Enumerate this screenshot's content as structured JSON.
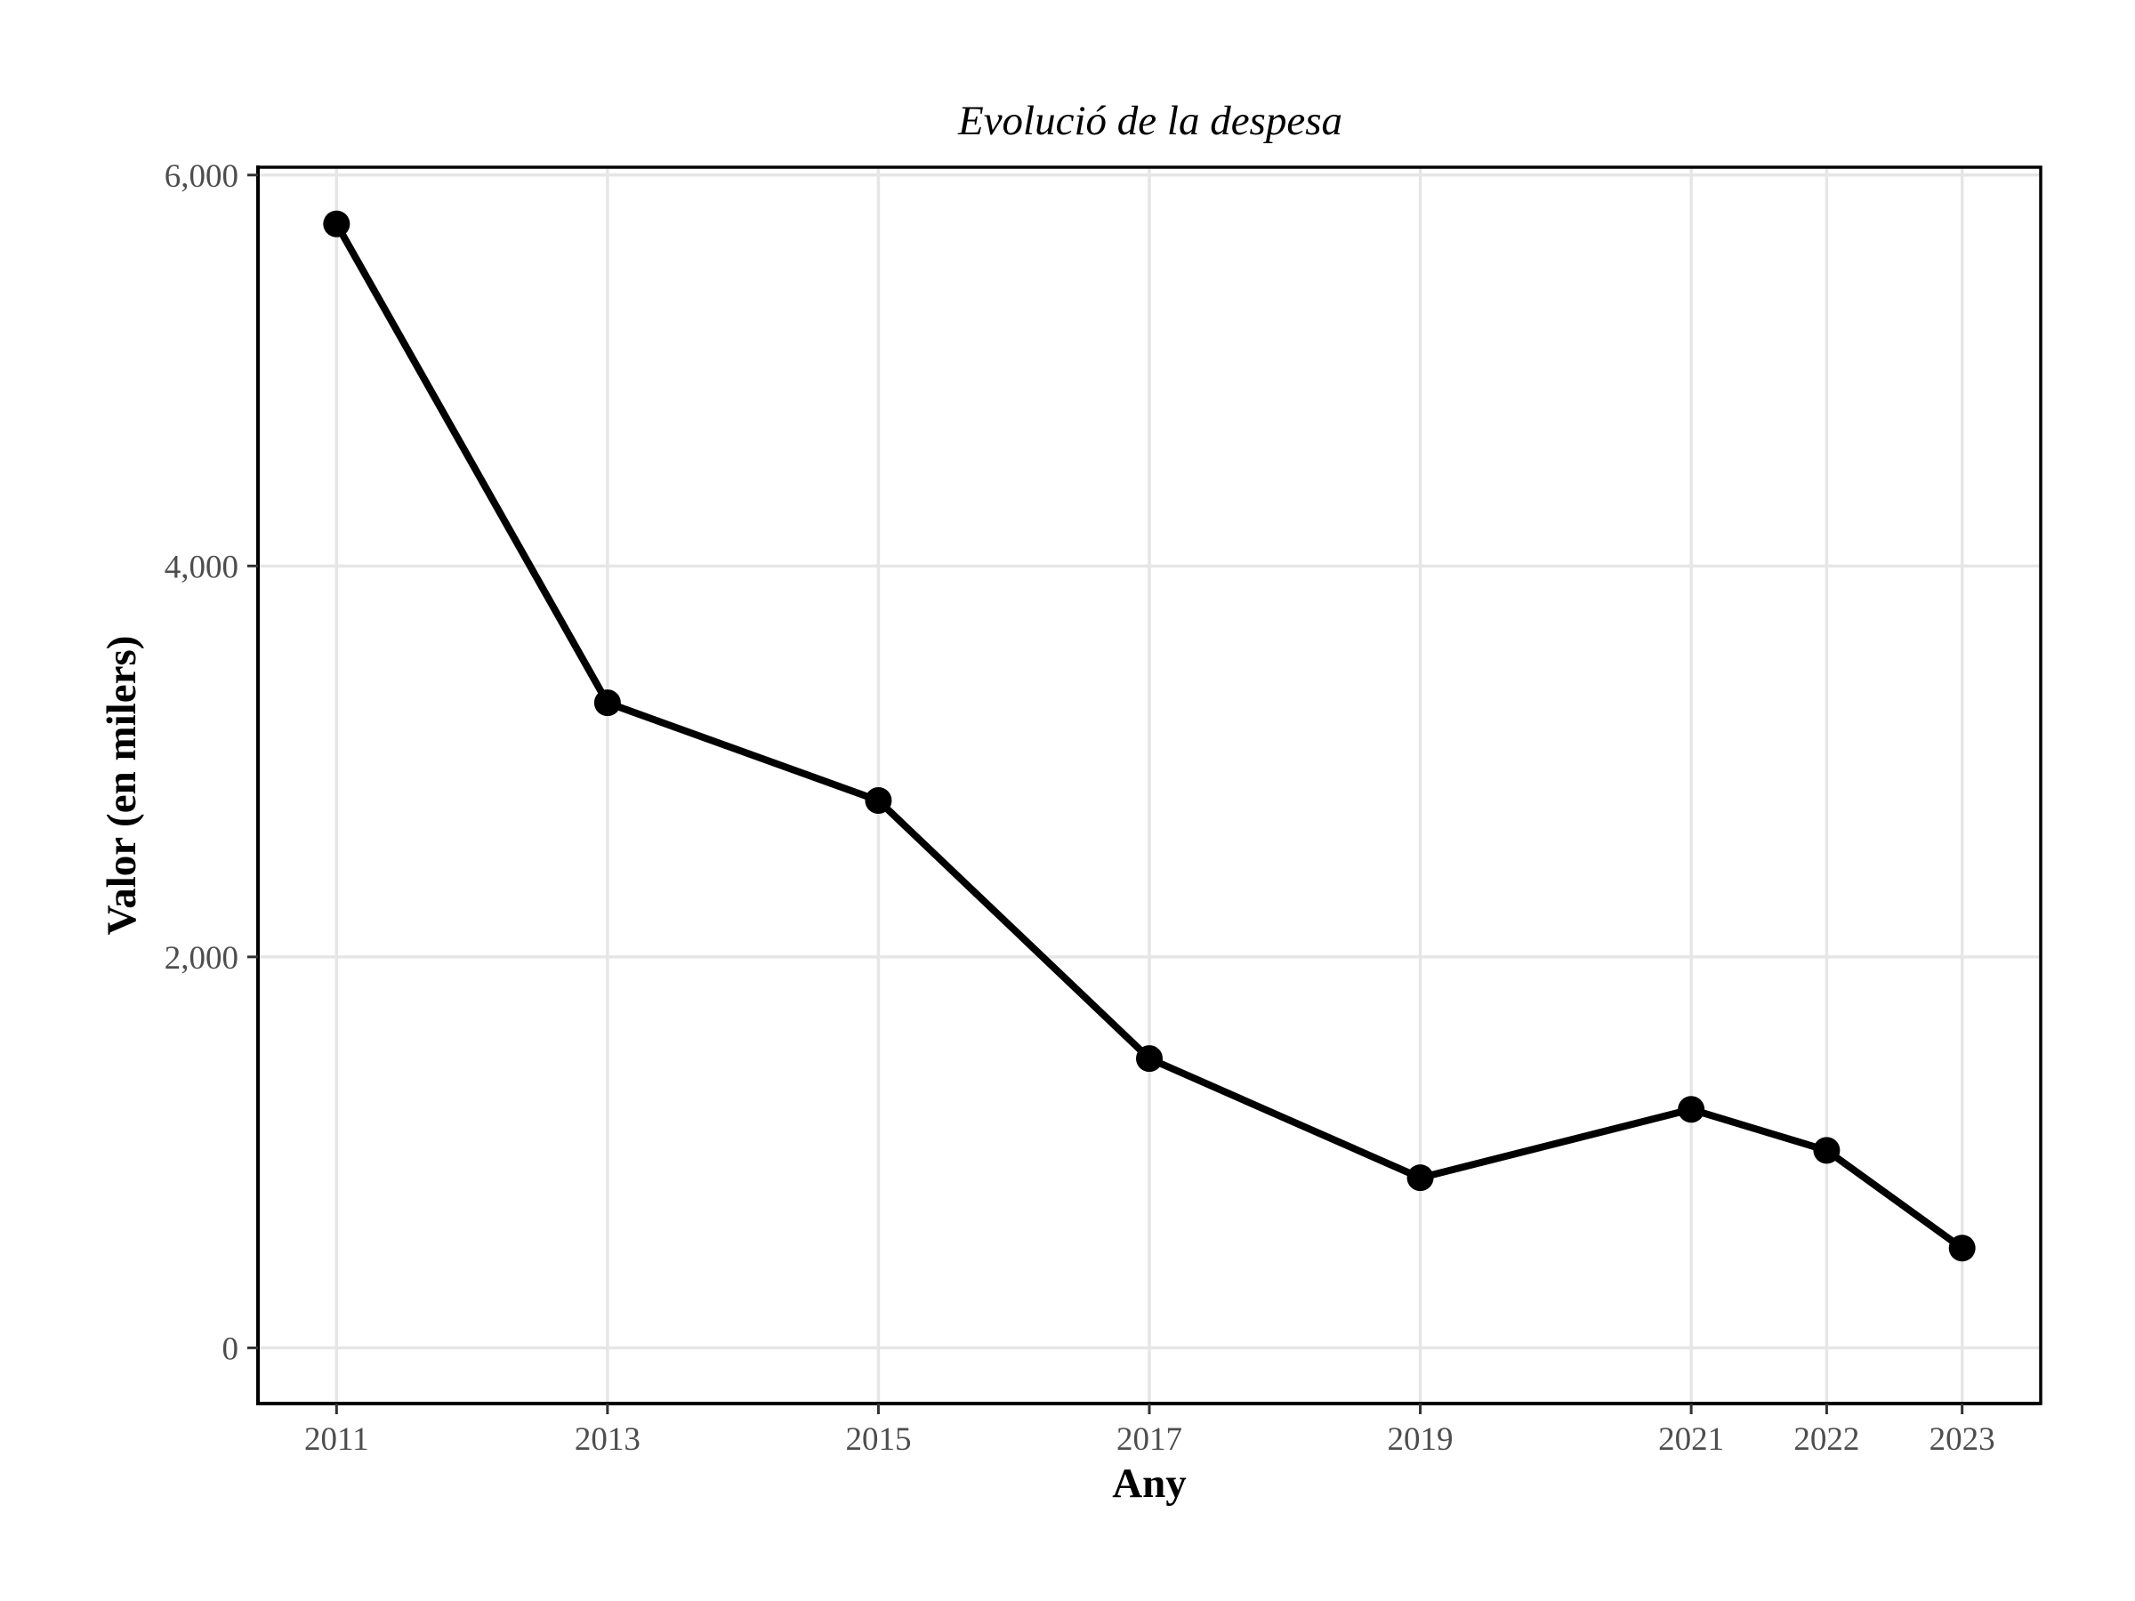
{
  "chart_data": {
    "type": "line",
    "title": "Evolució de la despesa",
    "xlabel": "Any",
    "ylabel": "Valor (en milers)",
    "x": [
      2011,
      2013,
      2015,
      2017,
      2019,
      2021,
      2022,
      2023
    ],
    "x_ticks": [
      2011,
      2013,
      2015,
      2017,
      2019,
      2021,
      2022,
      2023
    ],
    "x_tick_labels": [
      "2011",
      "2013",
      "2015",
      "2017",
      "2019",
      "2021",
      "2022",
      "2023"
    ],
    "y_ticks": [
      0,
      2000,
      4000,
      6000
    ],
    "y_tick_labels": [
      "0",
      "2,000",
      "4,000",
      "6,000"
    ],
    "xlim": [
      2010.42,
      2023.58
    ],
    "ylim": [
      -285,
      6040
    ],
    "grid": true,
    "legend": "none",
    "series": [
      {
        "values": [
          5750,
          3300,
          2800,
          1480,
          870,
          1220,
          1010,
          510
        ],
        "color": "#000000"
      }
    ]
  }
}
